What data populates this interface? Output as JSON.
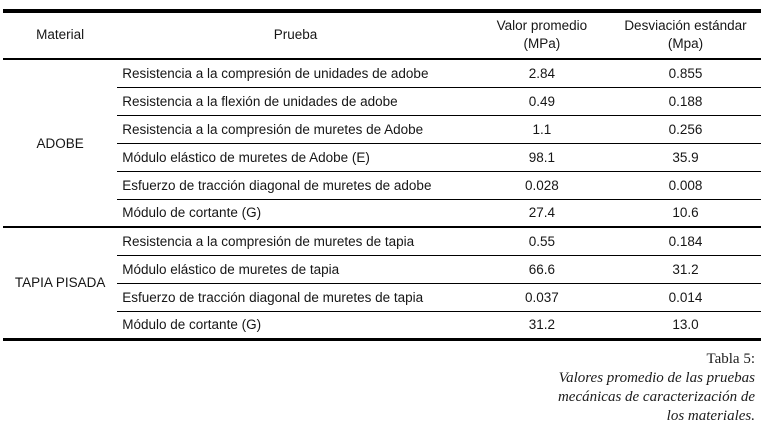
{
  "table": {
    "columns": {
      "material": "Material",
      "prueba": "Prueba",
      "valor_line1": "Valor promedio",
      "valor_line2": "(MPa)",
      "desv_line1": "Desviación estándar",
      "desv_line2": "(Mpa)"
    },
    "groups": [
      {
        "material": "ADOBE",
        "rows": [
          {
            "prueba": "Resistencia a la compresión de unidades de adobe",
            "valor": "2.84",
            "desviacion": "0.855"
          },
          {
            "prueba": "Resistencia a la flexión de unidades de adobe",
            "valor": "0.49",
            "desviacion": "0.188"
          },
          {
            "prueba": "Resistencia a la compresión de muretes de Adobe",
            "valor": "1.1",
            "desviacion": "0.256"
          },
          {
            "prueba": "Módulo elástico de muretes de Adobe (E)",
            "valor": "98.1",
            "desviacion": "35.9"
          },
          {
            "prueba": "Esfuerzo de tracción diagonal de muretes de adobe",
            "valor": "0.028",
            "desviacion": "0.008"
          },
          {
            "prueba": "Módulo de cortante (G)",
            "valor": "27.4",
            "desviacion": "10.6"
          }
        ]
      },
      {
        "material": "TAPIA PISADA",
        "rows": [
          {
            "prueba": "Resistencia a la compresión de muretes de tapia",
            "valor": "0.55",
            "desviacion": "0.184"
          },
          {
            "prueba": "Módulo elástico de muretes de tapia",
            "valor": "66.6",
            "desviacion": "31.2"
          },
          {
            "prueba": "Esfuerzo de tracción diagonal de muretes de tapia",
            "valor": "0.037",
            "desviacion": "0.014"
          },
          {
            "prueba": "Módulo de cortante (G)",
            "valor": "31.2",
            "desviacion": "13.0"
          }
        ]
      }
    ]
  },
  "caption": {
    "label": "Tabla 5:",
    "text": "Valores promedio de las pruebas mecánicas de caracterización de los materiales."
  }
}
